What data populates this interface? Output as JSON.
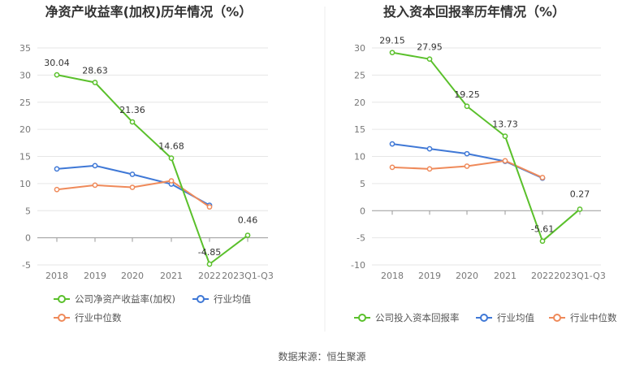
{
  "source": "数据来源：恒生聚源",
  "charts": [
    {
      "title": "净资产收益率(加权)历年情况（%）",
      "chart_data": {
        "type": "line",
        "categories": [
          "2018",
          "2019",
          "2020",
          "2021",
          "2022",
          "2023Q1-Q3"
        ],
        "ylim": [
          -5,
          35
        ],
        "yticks": [
          -5,
          0,
          5,
          10,
          15,
          20,
          25,
          30,
          35
        ],
        "grid": true,
        "legend": "bottom",
        "series": [
          {
            "name": "公司净资产收益率(加权)",
            "color": "#5ac02b",
            "values": [
              30.04,
              28.63,
              21.36,
              14.68,
              -4.85,
              0.46
            ],
            "labels": [
              "30.04",
              "28.63",
              "21.36",
              "14.68",
              "-4.85",
              "0.46"
            ]
          },
          {
            "name": "行业均值",
            "color": "#3f78d6",
            "values": [
              12.7,
              13.3,
              11.7,
              9.9,
              6.0,
              null
            ]
          },
          {
            "name": "行业中位数",
            "color": "#ef8a5a",
            "values": [
              8.9,
              9.7,
              9.3,
              10.5,
              5.7,
              null
            ]
          }
        ]
      }
    },
    {
      "title": "投入资本回报率历年情况（%）",
      "chart_data": {
        "type": "line",
        "categories": [
          "2018",
          "2019",
          "2020",
          "2021",
          "2022",
          "2023Q1-Q3"
        ],
        "ylim": [
          -10,
          30
        ],
        "yticks": [
          -10,
          -5,
          0,
          5,
          10,
          15,
          20,
          25,
          30
        ],
        "grid": true,
        "legend": "bottom",
        "series": [
          {
            "name": "公司投入资本回报率",
            "color": "#5ac02b",
            "values": [
              29.15,
              27.95,
              19.25,
              13.73,
              -5.61,
              0.27
            ],
            "labels": [
              "29.15",
              "27.95",
              "19.25",
              "13.73",
              "-5.61",
              "0.27"
            ]
          },
          {
            "name": "行业均值",
            "color": "#3f78d6",
            "values": [
              12.3,
              11.4,
              10.5,
              9.1,
              6.0,
              null
            ]
          },
          {
            "name": "行业中位数",
            "color": "#ef8a5a",
            "values": [
              8.0,
              7.7,
              8.2,
              9.2,
              6.1,
              null
            ]
          }
        ]
      }
    }
  ]
}
